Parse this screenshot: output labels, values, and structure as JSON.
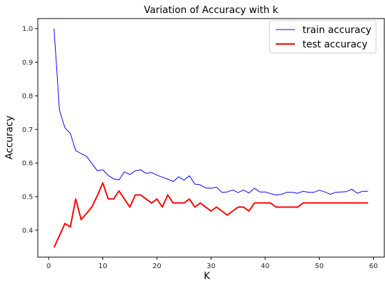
{
  "chart_data": {
    "type": "line",
    "title": "Variation of Accuracy with k",
    "xlabel": "K",
    "ylabel": "Accuracy",
    "xlim": [
      -2,
      62
    ],
    "ylim": [
      0.32,
      1.03
    ],
    "xticks": [
      0,
      10,
      20,
      30,
      40,
      50,
      60
    ],
    "yticks": [
      0.4,
      0.5,
      0.6,
      0.7,
      0.8,
      0.9,
      1.0
    ],
    "grid": false,
    "legend_position": "top-right",
    "x": [
      1,
      2,
      3,
      4,
      5,
      6,
      7,
      8,
      9,
      10,
      11,
      12,
      13,
      14,
      15,
      16,
      17,
      18,
      19,
      20,
      21,
      22,
      23,
      24,
      25,
      26,
      27,
      28,
      29,
      30,
      31,
      32,
      33,
      34,
      35,
      36,
      37,
      38,
      39,
      40,
      41,
      42,
      43,
      44,
      45,
      46,
      47,
      48,
      49,
      50,
      51,
      52,
      53,
      54,
      55,
      56,
      57,
      58,
      59
    ],
    "series": [
      {
        "name": "train accuracy",
        "color": "#0000ff",
        "values": [
          1.0,
          0.757,
          0.705,
          0.688,
          0.637,
          0.628,
          0.62,
          0.598,
          0.577,
          0.58,
          0.563,
          0.553,
          0.55,
          0.574,
          0.566,
          0.577,
          0.58,
          0.569,
          0.572,
          0.564,
          0.558,
          0.552,
          0.545,
          0.559,
          0.549,
          0.562,
          0.537,
          0.535,
          0.526,
          0.525,
          0.528,
          0.513,
          0.514,
          0.52,
          0.512,
          0.52,
          0.511,
          0.525,
          0.514,
          0.514,
          0.509,
          0.505,
          0.507,
          0.513,
          0.513,
          0.51,
          0.516,
          0.513,
          0.513,
          0.519,
          0.514,
          0.507,
          0.513,
          0.514,
          0.515,
          0.522,
          0.51,
          0.516,
          0.516
        ]
      },
      {
        "name": "test accuracy",
        "color": "#ff0000",
        "values": [
          0.349,
          0.384,
          0.42,
          0.41,
          0.493,
          0.432,
          0.45,
          0.47,
          0.503,
          0.541,
          0.493,
          0.493,
          0.517,
          0.493,
          0.469,
          0.505,
          0.505,
          0.493,
          0.481,
          0.493,
          0.469,
          0.505,
          0.481,
          0.481,
          0.481,
          0.493,
          0.469,
          0.481,
          0.469,
          0.457,
          0.469,
          0.457,
          0.445,
          0.457,
          0.469,
          0.469,
          0.457,
          0.481,
          0.481,
          0.481,
          0.481,
          0.469,
          0.469,
          0.469,
          0.469,
          0.469,
          0.481,
          0.481,
          0.481,
          0.481,
          0.481,
          0.481,
          0.481,
          0.481,
          0.481,
          0.481,
          0.481,
          0.481,
          0.481
        ]
      }
    ]
  }
}
